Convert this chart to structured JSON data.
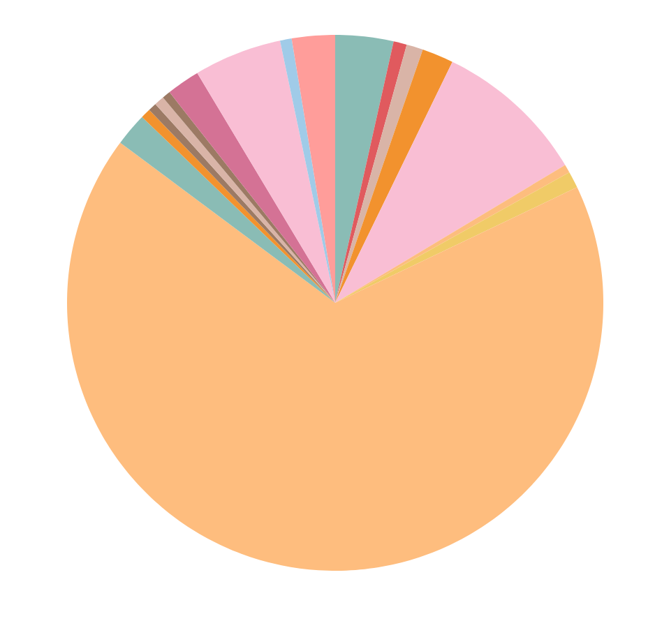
{
  "chart_data": {
    "type": "pie",
    "categories": [
      null,
      null,
      null,
      null,
      null,
      null,
      null,
      null,
      null,
      null,
      null,
      null,
      null,
      null,
      null,
      null,
      null
    ],
    "values": [
      3.5,
      0.8,
      1.0,
      1.9,
      9.2,
      0.5,
      1.0,
      67.3,
      2.0,
      0.6,
      0.5,
      0.6,
      0.5,
      2.0,
      5.3,
      0.7,
      2.6
    ],
    "colors": [
      "#8abcb5",
      "#e05a5e",
      "#d9b4a7",
      "#f2922e",
      "#f9bed4",
      "#fdbd7e",
      "#f0cb67",
      "#febd7e",
      "#8abcb5",
      "#f2922e",
      "#9c7a64",
      "#d9b4a7",
      "#9c7a64",
      "#d47295",
      "#f9bed4",
      "#a0cbe8",
      "#ff9d9a"
    ]
  }
}
